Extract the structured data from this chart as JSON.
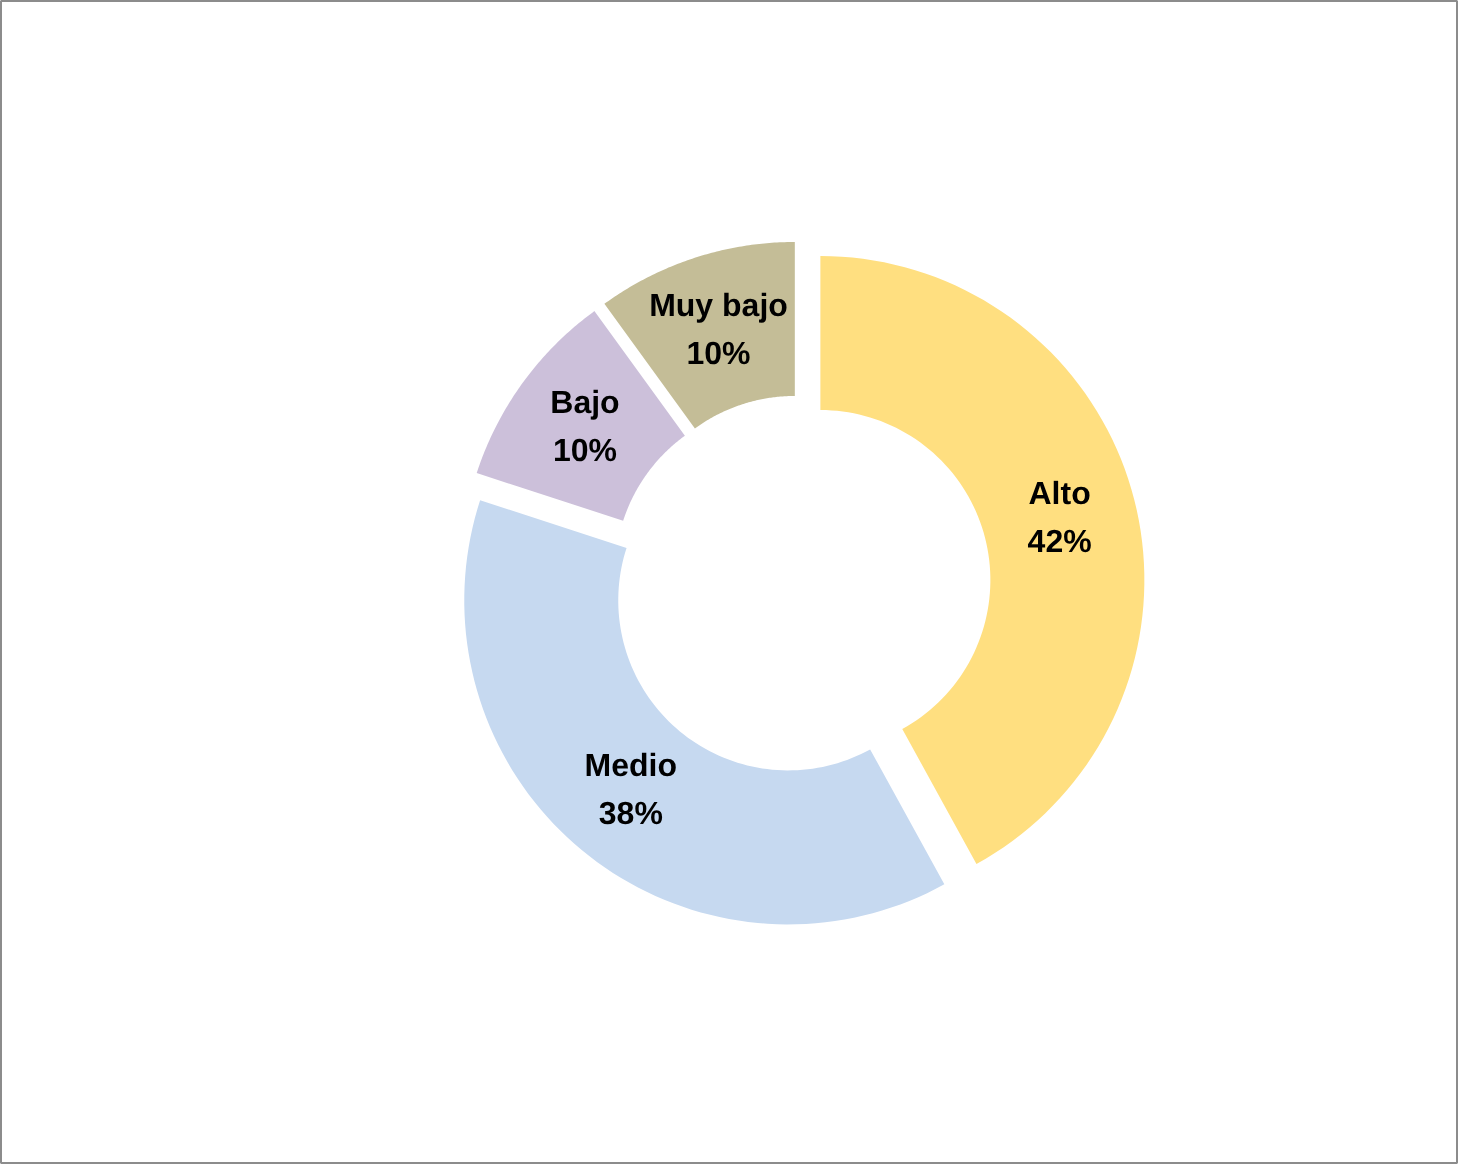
{
  "chart_data": {
    "type": "donut",
    "categories": [
      "Alto",
      "Medio",
      "Bajo",
      "Muy bajo"
    ],
    "values": [
      42,
      38,
      10,
      10
    ],
    "colors": [
      "#ffdf80",
      "#c6d9f0",
      "#ccc0da",
      "#c4bd97"
    ],
    "value_labels": [
      "42%",
      "38%",
      "10%",
      "10%"
    ]
  }
}
